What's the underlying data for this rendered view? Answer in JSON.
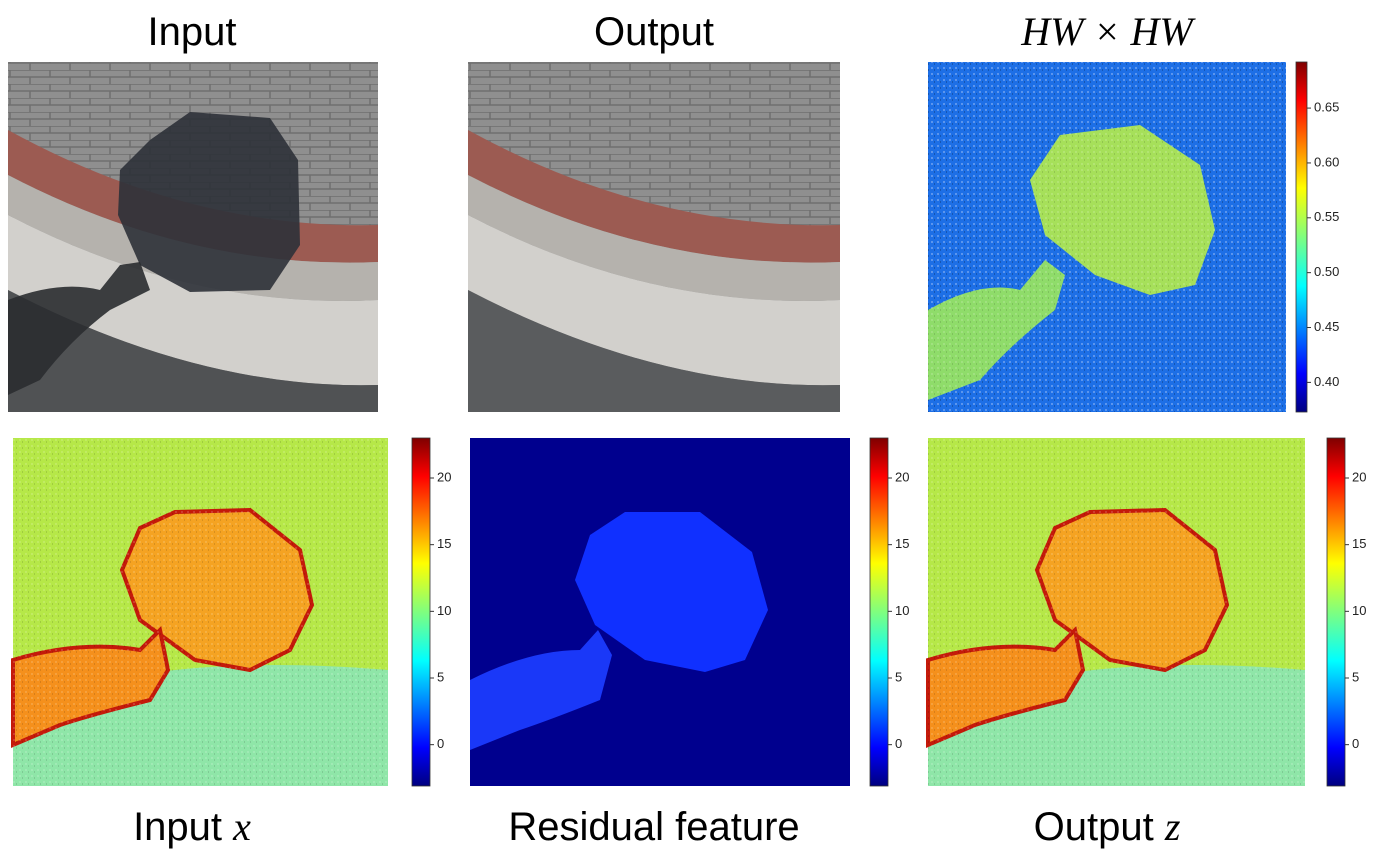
{
  "panels": [
    {
      "title": "Input"
    },
    {
      "title": "Output"
    },
    {
      "title": "HW × HW",
      "colorbar": {
        "lim": [
          0.373,
          0.692
        ],
        "ticks": [
          {
            "value": 0.4,
            "label": "0.40"
          },
          0.45,
          {
            "value": 0.5,
            "label": "0.50"
          },
          0.55,
          {
            "value": 0.6,
            "label": "0.60"
          },
          0.65
        ]
      }
    },
    {
      "caption": {
        "text": "Input",
        "math": "x"
      },
      "colorbar": {
        "lim": [
          -3.1,
          23
        ],
        "ticks": [
          0,
          5,
          10,
          15,
          20
        ]
      }
    },
    {
      "caption": {
        "text": "Residual feature"
      },
      "colorbar": {
        "lim": [
          -3.1,
          23
        ],
        "ticks": [
          0,
          5,
          10,
          15,
          20
        ]
      }
    },
    {
      "caption": {
        "text": "Output",
        "math": "z"
      },
      "colorbar": {
        "lim": [
          -3.1,
          23
        ],
        "ticks": [
          0,
          5,
          10,
          15,
          20
        ]
      }
    }
  ]
}
